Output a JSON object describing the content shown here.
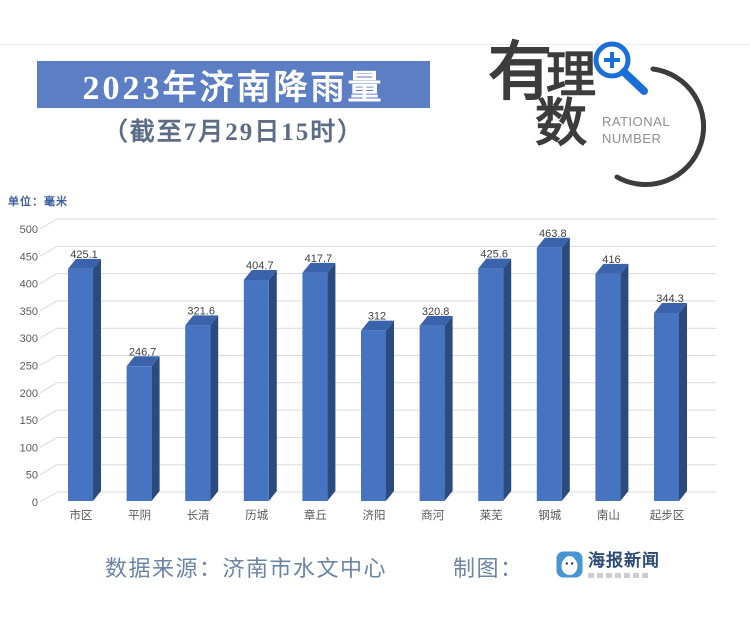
{
  "header": {
    "title": "2023年济南降雨量",
    "subtitle": "（截至7月29日15时）",
    "banner_color": "#5b7ec4"
  },
  "logo": {
    "char1": "有",
    "char2": "理",
    "char3": "数",
    "caption_line1": "RATIONAL",
    "caption_line2": "NUMBER",
    "magnifier_color": "#1a6fd6"
  },
  "chart_data": {
    "type": "bar",
    "style": "3d-column",
    "title": "2023年济南降雨量",
    "subtitle": "（截至7月29日15时）",
    "unit_label": "单位：毫米",
    "categories": [
      "市区",
      "平阴",
      "长清",
      "历城",
      "章丘",
      "济阳",
      "商河",
      "莱芜",
      "钢城",
      "南山",
      "起步区"
    ],
    "values": [
      425.1,
      246.7,
      321.6,
      404.7,
      417.7,
      312,
      320.8,
      425.6,
      463.8,
      416,
      344.3
    ],
    "value_labels": [
      "425.1",
      "246.7",
      "321.6",
      "404.7",
      "417.7",
      "312",
      "320.8",
      "425.6",
      "463.8",
      "416",
      "344.3"
    ],
    "y_ticks": [
      0,
      50,
      100,
      150,
      200,
      250,
      300,
      350,
      400,
      450,
      500
    ],
    "ylim": [
      0,
      500
    ],
    "grid": true,
    "legend": false,
    "colors": {
      "bar_front": "#4674c1",
      "bar_side": "#2b4a80",
      "bar_top": "#3a63ab",
      "gridline": "#d9d9d9",
      "tick_label": "#595959",
      "value_label": "#3f3f3f"
    }
  },
  "footer": {
    "source": "数据来源：济南市水文中心",
    "credit": "制图：",
    "brand": "海报新闻"
  }
}
